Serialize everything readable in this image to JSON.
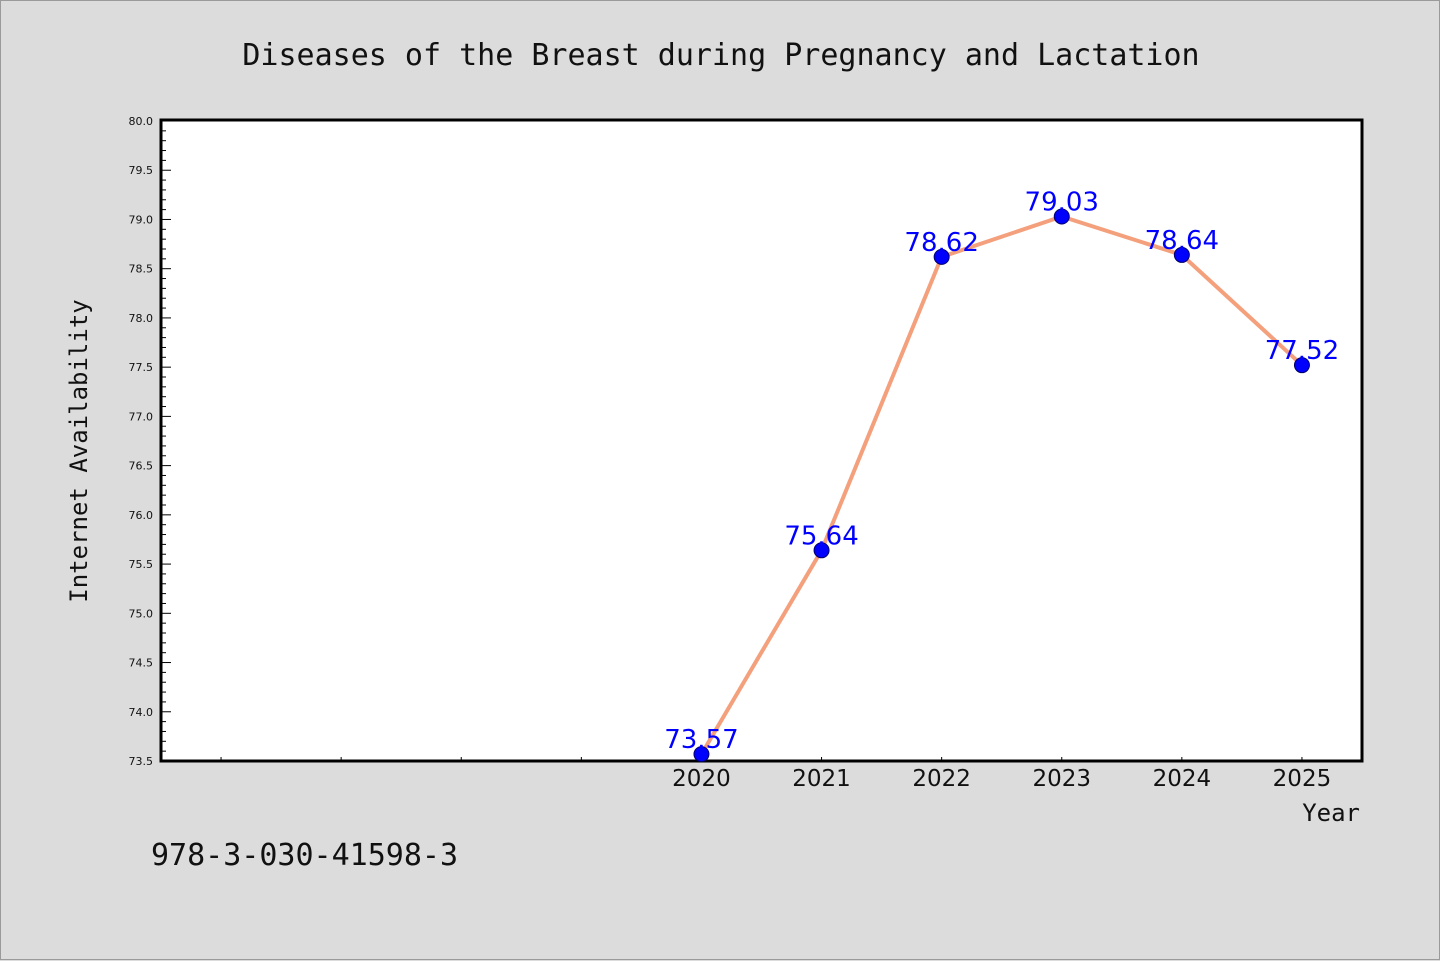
{
  "chart_data": {
    "type": "line",
    "title": "Diseases of the Breast during Pregnancy and Lactation",
    "xlabel": "Year",
    "ylabel": "Internet Availability",
    "x": [
      2020,
      2021,
      2022,
      2023,
      2024,
      2025
    ],
    "series": [
      {
        "values": [
          73.57,
          75.64,
          78.62,
          79.03,
          78.64,
          77.52
        ],
        "data_labels": [
          "73.57",
          "75.64",
          "78.62",
          "79.03",
          "78.64",
          "77.52"
        ]
      }
    ],
    "ylim": [
      73.5,
      80.0
    ],
    "xlim": [
      2015.5,
      2025.5
    ],
    "yticks": [
      "73.5",
      "74.0",
      "74.5",
      "75.0",
      "75.5",
      "76.0",
      "76.5",
      "77.0",
      "77.5",
      "78.0",
      "78.5",
      "79.0",
      "79.5",
      "80.0"
    ],
    "xticks": [
      "2020",
      "2021",
      "2022",
      "2023",
      "2024",
      "2025"
    ],
    "grid": false,
    "line_color": "#f4a07c",
    "marker_color": "#0000ff",
    "label_color": "#0000ff"
  },
  "footer": {
    "isbn": "978-3-030-41598-3"
  }
}
